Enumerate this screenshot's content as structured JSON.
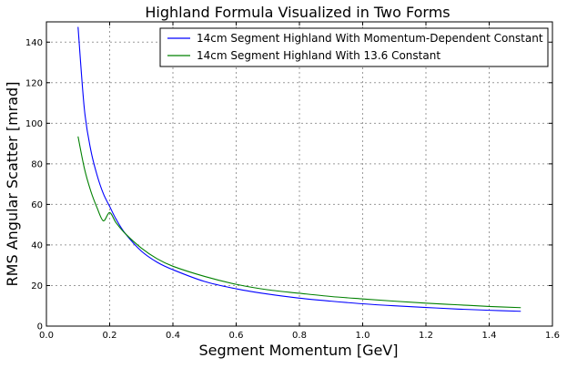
{
  "chart_data": {
    "type": "line",
    "title": "Highland Formula Visualized in Two Forms",
    "xlabel": "Segment Momentum [GeV]",
    "ylabel": "RMS Angular Scatter [mrad]",
    "xlim": [
      0.0,
      1.6
    ],
    "ylim": [
      0,
      150
    ],
    "xticks": [
      "0.0",
      "0.2",
      "0.4",
      "0.6",
      "0.8",
      "1.0",
      "1.2",
      "1.4",
      "1.6"
    ],
    "yticks": [
      "0",
      "20",
      "40",
      "60",
      "80",
      "100",
      "120",
      "140"
    ],
    "grid": true,
    "legend_position": "top-right",
    "x": [
      0.1,
      0.12,
      0.14,
      0.16,
      0.18,
      0.2,
      0.22,
      0.25,
      0.3,
      0.35,
      0.4,
      0.5,
      0.6,
      0.7,
      0.8,
      0.9,
      1.0,
      1.1,
      1.2,
      1.3,
      1.4,
      1.5
    ],
    "series": [
      {
        "name": "14cm Segment Highland With Momentum-Dependent Constant",
        "color": "#0000ff",
        "values": [
          147.5,
          107.0,
          87.0,
          74.5,
          65.3,
          59.0,
          52.8,
          45.5,
          37.0,
          31.5,
          27.8,
          22.0,
          18.4,
          15.8,
          13.8,
          12.3,
          11.0,
          10.0,
          9.2,
          8.4,
          7.8,
          7.3
        ]
      },
      {
        "name": "14cm Segment Highland With 13.6 Constant",
        "color": "#008000",
        "values": [
          93.5,
          77.8,
          66.7,
          58.4,
          51.9,
          56.0,
          51.0,
          45.5,
          38.5,
          33.2,
          29.5,
          24.5,
          20.6,
          17.9,
          16.2,
          14.6,
          13.4,
          12.3,
          11.3,
          10.5,
          9.7,
          9.1
        ]
      }
    ]
  }
}
